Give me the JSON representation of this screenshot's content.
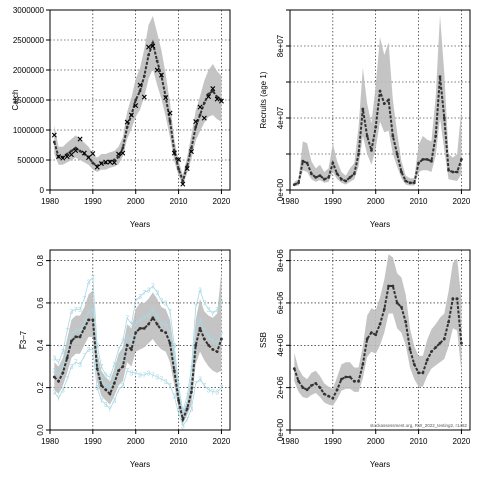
{
  "figure": {
    "watermark": "stockassessment.org, RW_2022_testing2, r1482"
  },
  "chart_data": [
    {
      "type": "line",
      "ylabel": "Catch",
      "xlabel": "Years",
      "xlim": [
        1980,
        2022
      ],
      "ylim": [
        0,
        3000000
      ],
      "xticks": [
        1980,
        1990,
        2000,
        2010,
        2020
      ],
      "yticks": [
        0,
        500000,
        1000000,
        1500000,
        2000000,
        2500000,
        3000000
      ],
      "ytick_labels": [
        "0",
        "500000",
        "1000000",
        "1500000",
        "2000000",
        "2500000",
        "3000000"
      ],
      "ytick_orientation": "horizontal",
      "grid": true,
      "band_color": "#bebebe",
      "line_color": "#333333",
      "x": [
        1981,
        1982,
        1983,
        1984,
        1985,
        1986,
        1987,
        1988,
        1989,
        1990,
        1991,
        1992,
        1993,
        1994,
        1995,
        1996,
        1997,
        1998,
        1999,
        2000,
        2001,
        2002,
        2003,
        2004,
        2005,
        2006,
        2007,
        2008,
        2009,
        2010,
        2011,
        2012,
        2013,
        2014,
        2015,
        2016,
        2017,
        2018,
        2019,
        2020
      ],
      "series": [
        {
          "role": "estimate",
          "values": [
            800000,
            550000,
            550000,
            600000,
            650000,
            700000,
            650000,
            600000,
            550000,
            450000,
            400000,
            450000,
            450000,
            480000,
            500000,
            550000,
            700000,
            1050000,
            1250000,
            1500000,
            1650000,
            1900000,
            2250000,
            2450000,
            2150000,
            1900000,
            1550000,
            1150000,
            650000,
            350000,
            150000,
            400000,
            700000,
            1050000,
            1250000,
            1450000,
            1600000,
            1650000,
            1550000,
            1500000
          ]
        },
        {
          "role": "lower",
          "values": [
            600000,
            420000,
            420000,
            460000,
            500000,
            540000,
            500000,
            460000,
            420000,
            340000,
            300000,
            340000,
            340000,
            370000,
            390000,
            430000,
            560000,
            850000,
            1020000,
            1220000,
            1340000,
            1550000,
            1850000,
            2020000,
            1750000,
            1520000,
            1220000,
            880000,
            480000,
            240000,
            80000,
            280000,
            520000,
            820000,
            980000,
            1120000,
            1220000,
            1250000,
            1180000,
            1140000
          ]
        },
        {
          "role": "upper",
          "values": [
            1080000,
            720000,
            720000,
            790000,
            850000,
            910000,
            850000,
            790000,
            720000,
            600000,
            540000,
            600000,
            600000,
            630000,
            650000,
            720000,
            880000,
            1300000,
            1540000,
            1850000,
            2030000,
            2350000,
            2750000,
            2900000,
            2620000,
            2330000,
            1930000,
            1450000,
            850000,
            490000,
            250000,
            550000,
            920000,
            1320000,
            1560000,
            1820000,
            2000000,
            2100000,
            1980000,
            1900000
          ]
        },
        {
          "role": "observed",
          "values": [
            920000,
            560000,
            530000,
            560000,
            590000,
            660000,
            850000,
            620000,
            540000,
            610000,
            380000,
            440000,
            470000,
            470000,
            460000,
            600000,
            620000,
            1130000,
            1250000,
            1410000,
            1750000,
            1550000,
            2380000,
            2400000,
            2000000,
            1920000,
            1540000,
            1280000,
            620000,
            510000,
            100000,
            360000,
            640000,
            1140000,
            1380000,
            1200000,
            1560000,
            1690000,
            1520000,
            1480000
          ]
        }
      ]
    },
    {
      "type": "line",
      "ylabel": "Recruits (age 1)",
      "xlabel": "Years",
      "xlim": [
        1980,
        2022
      ],
      "ylim": [
        0,
        100000000
      ],
      "xticks": [
        1980,
        1990,
        2000,
        2010,
        2020
      ],
      "yticks": [
        0,
        20000000,
        40000000,
        60000000,
        80000000,
        100000000
      ],
      "ytick_labels": [
        "0e+00",
        "",
        "4e+07",
        "",
        "8e+07",
        ""
      ],
      "ytick_orientation": "vertical",
      "grid": true,
      "band_color": "#bebebe",
      "line_color": "#333333",
      "x": [
        1981,
        1982,
        1983,
        1984,
        1985,
        1986,
        1987,
        1988,
        1989,
        1990,
        1991,
        1992,
        1993,
        1994,
        1995,
        1996,
        1997,
        1998,
        1999,
        2000,
        2001,
        2002,
        2003,
        2004,
        2005,
        2006,
        2007,
        2008,
        2009,
        2010,
        2011,
        2012,
        2013,
        2014,
        2015,
        2016,
        2017,
        2018,
        2019,
        2020
      ],
      "series": [
        {
          "role": "estimate",
          "values": [
            3000000,
            4000000,
            16000000,
            15000000,
            9000000,
            7000000,
            8000000,
            6000000,
            7000000,
            15000000,
            9000000,
            6000000,
            5000000,
            7000000,
            9000000,
            20000000,
            45000000,
            30000000,
            22000000,
            35000000,
            55000000,
            48000000,
            50000000,
            30000000,
            20000000,
            10000000,
            5000000,
            4000000,
            4000000,
            15000000,
            17000000,
            17000000,
            16000000,
            30000000,
            63000000,
            40000000,
            11000000,
            10000000,
            10000000,
            17000000
          ]
        },
        {
          "role": "lower",
          "values": [
            2000000,
            2500000,
            11000000,
            10000000,
            6000000,
            4500000,
            5500000,
            4000000,
            4500000,
            10000000,
            6000000,
            4000000,
            3000000,
            4500000,
            6000000,
            13000000,
            30000000,
            20000000,
            14000000,
            23000000,
            38000000,
            32000000,
            33000000,
            20000000,
            13000000,
            6500000,
            3000000,
            2500000,
            2500000,
            10000000,
            11000000,
            11000000,
            10000000,
            19000000,
            40000000,
            22000000,
            6000000,
            5500000,
            5000000,
            9000000
          ]
        },
        {
          "role": "upper",
          "values": [
            4500000,
            6000000,
            27000000,
            26000000,
            16000000,
            12000000,
            14000000,
            10000000,
            12000000,
            26000000,
            16000000,
            10000000,
            8000000,
            12000000,
            15000000,
            35000000,
            68000000,
            48000000,
            37000000,
            58000000,
            85000000,
            75000000,
            82000000,
            50000000,
            32000000,
            16000000,
            8000000,
            6500000,
            6500000,
            25000000,
            30000000,
            28000000,
            27000000,
            52000000,
            97000000,
            65000000,
            20000000,
            18000000,
            20000000,
            45000000
          ]
        }
      ]
    },
    {
      "type": "line",
      "ylabel": "F̅3–7",
      "xlabel": "Years",
      "xlim": [
        1980,
        2022
      ],
      "ylim": [
        0,
        0.85
      ],
      "xticks": [
        1980,
        1990,
        2000,
        2010,
        2020
      ],
      "yticks": [
        0.0,
        0.2,
        0.4,
        0.6,
        0.8
      ],
      "ytick_labels": [
        "0.0",
        "0.2",
        "0.4",
        "0.6",
        "0.8"
      ],
      "ytick_orientation": "vertical",
      "grid": true,
      "band_color": "#bebebe",
      "line_color": "#333333",
      "aux_color": "#a8d8e4",
      "x": [
        1981,
        1982,
        1983,
        1984,
        1985,
        1986,
        1987,
        1988,
        1989,
        1990,
        1991,
        1992,
        1993,
        1994,
        1995,
        1996,
        1997,
        1998,
        1999,
        2000,
        2001,
        2002,
        2003,
        2004,
        2005,
        2006,
        2007,
        2008,
        2009,
        2010,
        2011,
        2012,
        2013,
        2014,
        2015,
        2016,
        2017,
        2018,
        2019,
        2020
      ],
      "series": [
        {
          "role": "estimate",
          "values": [
            0.25,
            0.23,
            0.27,
            0.34,
            0.42,
            0.44,
            0.44,
            0.48,
            0.52,
            0.52,
            0.29,
            0.21,
            0.19,
            0.17,
            0.22,
            0.28,
            0.3,
            0.4,
            0.38,
            0.46,
            0.48,
            0.48,
            0.5,
            0.53,
            0.5,
            0.47,
            0.46,
            0.41,
            0.28,
            0.14,
            0.05,
            0.1,
            0.18,
            0.4,
            0.48,
            0.43,
            0.4,
            0.38,
            0.37,
            0.43
          ]
        },
        {
          "role": "lower",
          "values": [
            0.19,
            0.17,
            0.21,
            0.27,
            0.34,
            0.36,
            0.36,
            0.4,
            0.44,
            0.44,
            0.23,
            0.16,
            0.14,
            0.12,
            0.16,
            0.21,
            0.23,
            0.32,
            0.3,
            0.37,
            0.38,
            0.39,
            0.41,
            0.43,
            0.4,
            0.38,
            0.37,
            0.32,
            0.21,
            0.1,
            0.03,
            0.07,
            0.12,
            0.31,
            0.37,
            0.33,
            0.3,
            0.28,
            0.27,
            0.28
          ]
        },
        {
          "role": "upper",
          "values": [
            0.32,
            0.3,
            0.34,
            0.43,
            0.52,
            0.54,
            0.54,
            0.58,
            0.64,
            0.66,
            0.37,
            0.28,
            0.25,
            0.23,
            0.29,
            0.36,
            0.39,
            0.5,
            0.48,
            0.57,
            0.6,
            0.6,
            0.62,
            0.65,
            0.62,
            0.58,
            0.57,
            0.52,
            0.37,
            0.19,
            0.08,
            0.14,
            0.26,
            0.52,
            0.62,
            0.56,
            0.54,
            0.53,
            0.55,
            0.75
          ]
        },
        {
          "role": "aux_upper",
          "values": [
            0.34,
            0.32,
            0.37,
            0.47,
            0.56,
            0.57,
            0.57,
            0.62,
            0.7,
            0.72,
            0.4,
            0.3,
            0.26,
            0.25,
            0.31,
            0.38,
            0.42,
            0.53,
            0.5,
            0.61,
            0.63,
            0.65,
            0.66,
            0.68,
            0.65,
            0.61,
            0.6,
            0.56,
            0.4,
            0.21,
            0.09,
            0.16,
            0.29,
            0.58,
            0.66,
            0.6,
            0.57,
            0.55,
            0.57,
            0.6
          ]
        },
        {
          "role": "aux_middle",
          "values": [
            0.28,
            0.26,
            0.3,
            0.38,
            0.45,
            0.47,
            0.47,
            0.51,
            0.56,
            0.57,
            0.32,
            0.24,
            0.21,
            0.2,
            0.25,
            0.31,
            0.34,
            0.44,
            0.42,
            0.5,
            0.52,
            0.53,
            0.54,
            0.57,
            0.54,
            0.5,
            0.5,
            0.46,
            0.32,
            0.17,
            0.06,
            0.12,
            0.22,
            0.46,
            0.52,
            0.47,
            0.44,
            0.42,
            0.41,
            0.45
          ]
        },
        {
          "role": "aux_lower",
          "values": [
            0.18,
            0.15,
            0.19,
            0.24,
            0.3,
            0.32,
            0.31,
            0.35,
            0.38,
            0.38,
            0.2,
            0.14,
            0.12,
            0.1,
            0.14,
            0.19,
            0.21,
            0.28,
            0.27,
            0.27,
            0.26,
            0.26,
            0.27,
            0.26,
            0.25,
            0.24,
            0.23,
            0.21,
            0.16,
            0.08,
            0.02,
            0.05,
            0.1,
            0.22,
            0.24,
            0.21,
            0.19,
            0.18,
            0.18,
            0.2
          ]
        }
      ]
    },
    {
      "type": "line",
      "ylabel": "SSB",
      "xlabel": "Years",
      "xlim": [
        1980,
        2022
      ],
      "ylim": [
        0,
        8500000
      ],
      "xticks": [
        1980,
        1990,
        2000,
        2010,
        2020
      ],
      "yticks": [
        0,
        2000000,
        4000000,
        6000000,
        8000000
      ],
      "ytick_labels": [
        "0e+00",
        "2e+06",
        "4e+06",
        "6e+06",
        "8e+06"
      ],
      "ytick_orientation": "vertical",
      "grid": true,
      "band_color": "#bebebe",
      "line_color": "#333333",
      "x": [
        1981,
        1982,
        1983,
        1984,
        1985,
        1986,
        1987,
        1988,
        1989,
        1990,
        1991,
        1992,
        1993,
        1994,
        1995,
        1996,
        1997,
        1998,
        1999,
        2000,
        2001,
        2002,
        2003,
        2004,
        2005,
        2006,
        2007,
        2008,
        2009,
        2010,
        2011,
        2012,
        2013,
        2014,
        2015,
        2016,
        2017,
        2018,
        2019,
        2020
      ],
      "series": [
        {
          "role": "estimate",
          "values": [
            2900000,
            2300000,
            2000000,
            1900000,
            2100000,
            2200000,
            2000000,
            1700000,
            1600000,
            1500000,
            1900000,
            2400000,
            2500000,
            2500000,
            2300000,
            2300000,
            3100000,
            4300000,
            4600000,
            4500000,
            5000000,
            5700000,
            6800000,
            6800000,
            6000000,
            5800000,
            5100000,
            3800000,
            3100000,
            2700000,
            2700000,
            3300000,
            3700000,
            3900000,
            4100000,
            4300000,
            5100000,
            6200000,
            6200000,
            4100000
          ]
        },
        {
          "role": "lower",
          "values": [
            2300000,
            1800000,
            1550000,
            1500000,
            1650000,
            1750000,
            1550000,
            1300000,
            1200000,
            1150000,
            1450000,
            1850000,
            1950000,
            1950000,
            1800000,
            1800000,
            2450000,
            3450000,
            3700000,
            3600000,
            4000000,
            4600000,
            5500000,
            5500000,
            4800000,
            4600000,
            4000000,
            2950000,
            2400000,
            2050000,
            2050000,
            2550000,
            2900000,
            3050000,
            3200000,
            3350000,
            3950000,
            4800000,
            4700000,
            2750000
          ]
        },
        {
          "role": "upper",
          "values": [
            3650000,
            2900000,
            2550000,
            2400000,
            2700000,
            2800000,
            2550000,
            2200000,
            2050000,
            1950000,
            2500000,
            3100000,
            3200000,
            3200000,
            2950000,
            2950000,
            3950000,
            5400000,
            5750000,
            5650000,
            6250000,
            7100000,
            8300000,
            8150000,
            7400000,
            7200000,
            6400000,
            4800000,
            3950000,
            3500000,
            3500000,
            4250000,
            4750000,
            5000000,
            5300000,
            5500000,
            6550000,
            7900000,
            8100000,
            6150000
          ]
        }
      ]
    }
  ]
}
